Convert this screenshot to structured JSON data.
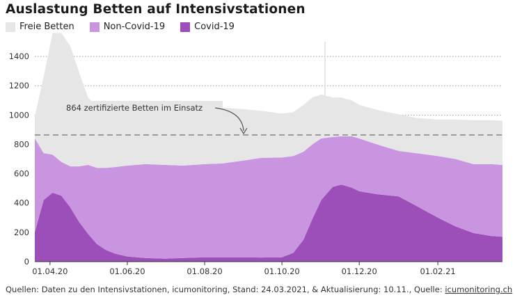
{
  "title": "Auslastung Betten auf Intensivstationen",
  "legend": [
    {
      "label": "Freie Betten",
      "color": "#e6e6e6"
    },
    {
      "label": "Non-Covid-19",
      "color": "#c994e0"
    },
    {
      "label": "Covid-19",
      "color": "#9c4fb8"
    }
  ],
  "annotation": {
    "label": "864 zertifizierte Betten im Einsatz",
    "value": 864
  },
  "source": {
    "prefix": "Quellen: Daten zu den Intensivstationen, icumonitoring, Stand: 24.03.2021,",
    "amp": "&",
    "middle": "Aktualisierung: 10.11., Quelle:",
    "link": "icumonitoring.ch"
  },
  "chart_data": {
    "type": "area",
    "ylim": [
      0,
      1500
    ],
    "yticks": [
      0,
      200,
      400,
      600,
      800,
      1000,
      1200,
      1400
    ],
    "xlim": [
      "2020-03-20",
      "2021-03-24"
    ],
    "xticks": [
      {
        "date": "2020-04-01",
        "label": "01.04.20"
      },
      {
        "date": "2020-06-01",
        "label": "01.06.20"
      },
      {
        "date": "2020-08-01",
        "label": "01.08.20"
      },
      {
        "date": "2020-10-01",
        "label": "01.10.20"
      },
      {
        "date": "2020-12-01",
        "label": "01.12.20"
      },
      {
        "date": "2021-02-01",
        "label": "01.02.21"
      }
    ],
    "reference_line": 864,
    "series": [
      {
        "name": "Covid-19",
        "color": "#9c4fb8",
        "points": [
          [
            "2020-03-20",
            200
          ],
          [
            "2020-03-27",
            420
          ],
          [
            "2020-04-03",
            470
          ],
          [
            "2020-04-10",
            450
          ],
          [
            "2020-04-17",
            370
          ],
          [
            "2020-04-24",
            270
          ],
          [
            "2020-05-01",
            190
          ],
          [
            "2020-05-08",
            120
          ],
          [
            "2020-05-15",
            80
          ],
          [
            "2020-05-22",
            55
          ],
          [
            "2020-06-01",
            35
          ],
          [
            "2020-06-15",
            25
          ],
          [
            "2020-07-01",
            20
          ],
          [
            "2020-07-15",
            25
          ],
          [
            "2020-08-01",
            30
          ],
          [
            "2020-08-15",
            30
          ],
          [
            "2020-09-01",
            30
          ],
          [
            "2020-09-15",
            28
          ],
          [
            "2020-10-01",
            30
          ],
          [
            "2020-10-10",
            60
          ],
          [
            "2020-10-18",
            150
          ],
          [
            "2020-10-25",
            290
          ],
          [
            "2020-11-01",
            420
          ],
          [
            "2020-11-10",
            510
          ],
          [
            "2020-11-17",
            525
          ],
          [
            "2020-11-25",
            505
          ],
          [
            "2020-12-01",
            480
          ],
          [
            "2020-12-15",
            460
          ],
          [
            "2021-01-01",
            445
          ],
          [
            "2021-01-15",
            380
          ],
          [
            "2021-02-01",
            300
          ],
          [
            "2021-02-15",
            240
          ],
          [
            "2021-03-01",
            195
          ],
          [
            "2021-03-15",
            175
          ],
          [
            "2021-03-24",
            170
          ]
        ]
      },
      {
        "name": "Non-Covid-19",
        "color": "#c994e0",
        "points": [
          [
            "2020-03-20",
            640
          ],
          [
            "2020-03-27",
            320
          ],
          [
            "2020-04-03",
            260
          ],
          [
            "2020-04-10",
            230
          ],
          [
            "2020-04-17",
            280
          ],
          [
            "2020-04-24",
            380
          ],
          [
            "2020-05-01",
            470
          ],
          [
            "2020-05-08",
            520
          ],
          [
            "2020-05-15",
            560
          ],
          [
            "2020-05-22",
            590
          ],
          [
            "2020-06-01",
            620
          ],
          [
            "2020-06-15",
            640
          ],
          [
            "2020-07-01",
            640
          ],
          [
            "2020-07-15",
            630
          ],
          [
            "2020-08-01",
            635
          ],
          [
            "2020-08-15",
            640
          ],
          [
            "2020-09-01",
            660
          ],
          [
            "2020-09-15",
            680
          ],
          [
            "2020-10-01",
            680
          ],
          [
            "2020-10-10",
            660
          ],
          [
            "2020-10-18",
            600
          ],
          [
            "2020-10-25",
            510
          ],
          [
            "2020-11-01",
            420
          ],
          [
            "2020-11-10",
            340
          ],
          [
            "2020-11-17",
            330
          ],
          [
            "2020-11-25",
            350
          ],
          [
            "2020-12-01",
            360
          ],
          [
            "2020-12-15",
            340
          ],
          [
            "2021-01-01",
            310
          ],
          [
            "2021-01-15",
            360
          ],
          [
            "2021-02-01",
            420
          ],
          [
            "2021-02-15",
            460
          ],
          [
            "2021-03-01",
            470
          ],
          [
            "2021-03-15",
            490
          ],
          [
            "2021-03-24",
            490
          ]
        ]
      },
      {
        "name": "Freie Betten",
        "color": "#e6e6e6",
        "points": [
          [
            "2020-03-20",
            150
          ],
          [
            "2020-03-27",
            520
          ],
          [
            "2020-04-03",
            830
          ],
          [
            "2020-04-10",
            880
          ],
          [
            "2020-04-17",
            820
          ],
          [
            "2020-04-24",
            640
          ],
          [
            "2020-05-01",
            460
          ],
          [
            "2020-05-08",
            420
          ],
          [
            "2020-05-15",
            410
          ],
          [
            "2020-05-22",
            400
          ],
          [
            "2020-06-01",
            410
          ],
          [
            "2020-06-15",
            400
          ],
          [
            "2020-07-01",
            410
          ],
          [
            "2020-07-15",
            415
          ],
          [
            "2020-08-01",
            400
          ],
          [
            "2020-08-15",
            380
          ],
          [
            "2020-09-01",
            350
          ],
          [
            "2020-09-15",
            320
          ],
          [
            "2020-10-01",
            300
          ],
          [
            "2020-10-10",
            300
          ],
          [
            "2020-10-18",
            320
          ],
          [
            "2020-10-25",
            320
          ],
          [
            "2020-11-01",
            300
          ],
          [
            "2020-11-10",
            270
          ],
          [
            "2020-11-17",
            265
          ],
          [
            "2020-11-25",
            245
          ],
          [
            "2020-12-01",
            230
          ],
          [
            "2020-12-15",
            235
          ],
          [
            "2021-01-01",
            250
          ],
          [
            "2021-01-15",
            240
          ],
          [
            "2021-02-01",
            250
          ],
          [
            "2021-02-15",
            270
          ],
          [
            "2021-03-01",
            300
          ],
          [
            "2021-03-15",
            300
          ],
          [
            "2021-03-24",
            300
          ]
        ]
      }
    ]
  }
}
